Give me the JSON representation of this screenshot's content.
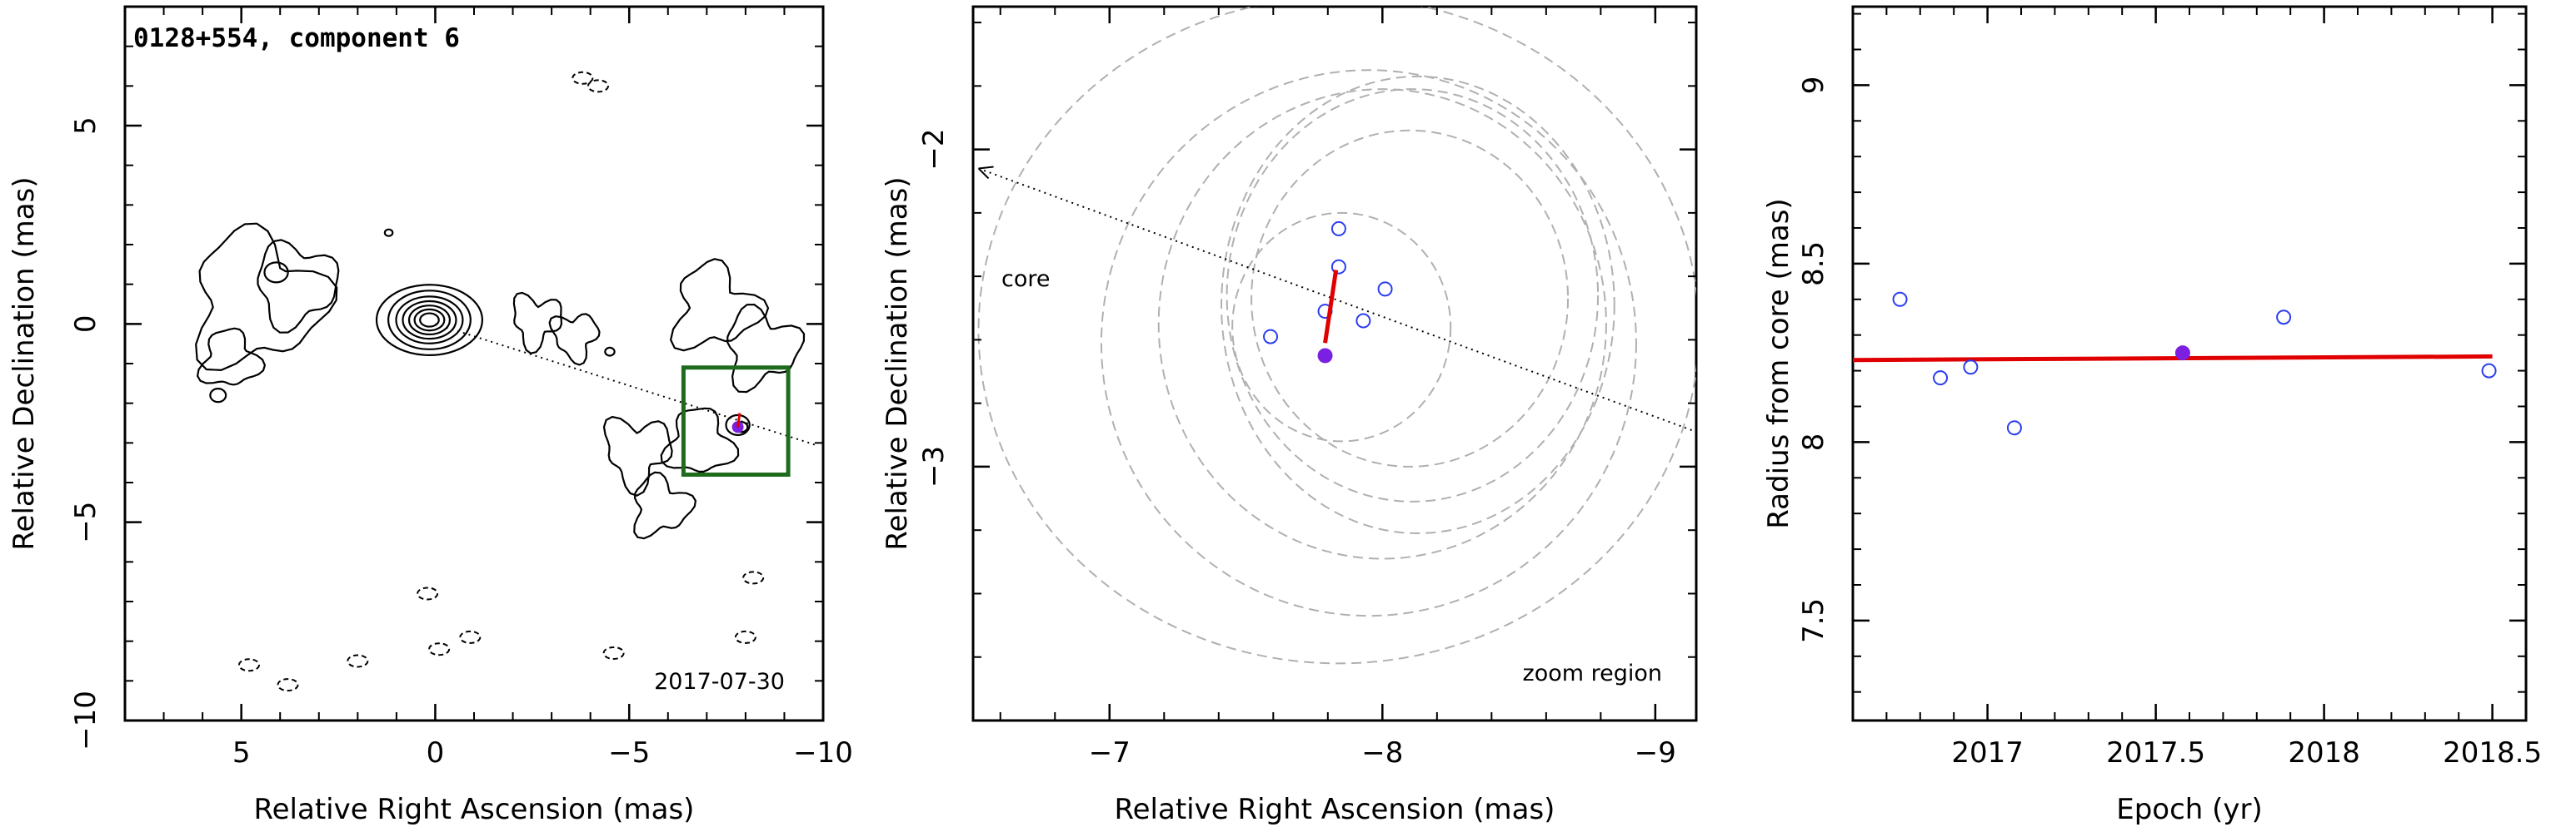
{
  "chart_data": [
    {
      "type": "contour",
      "title": "0128+554, component 6",
      "xlabel": "Relative Right Ascension (mas)",
      "ylabel": "Relative Declination (mas)",
      "xlim": [
        8,
        -10
      ],
      "ylim": [
        -10,
        8
      ],
      "x_ticks": [
        5,
        0,
        -5,
        -10
      ],
      "x_tick_labels": [
        "5",
        "0",
        "−5",
        "−10"
      ],
      "y_ticks": [
        5,
        0,
        -5,
        -10
      ],
      "y_tick_labels": [
        "5",
        "0",
        "−5",
        "−10"
      ],
      "annotation": "2017-07-30",
      "component_position": {
        "x": -7.8,
        "y": -2.6
      },
      "core_direction_line": {
        "from": [
          0.0,
          0.0
        ],
        "to": [
          -9.8,
          -3.05
        ]
      },
      "zoom_box": {
        "xlim": [
          -6.4,
          -9.1
        ],
        "ylim": [
          -1.1,
          -3.8
        ]
      },
      "colors": {
        "contour": "#000000",
        "zoom_box": "#1e6b1e",
        "component": "#7b1fe0",
        "motion": "#e00000"
      }
    },
    {
      "type": "scatter",
      "xlabel": "Relative Right Ascension (mas)",
      "ylabel": "Relative Declination (mas)",
      "xlim": [
        -6.5,
        -9.15
      ],
      "ylim": [
        -3.8,
        -1.55
      ],
      "x_ticks": [
        -7,
        -8,
        -9
      ],
      "x_tick_labels": [
        "−7",
        "−8",
        "−9"
      ],
      "y_ticks": [
        -2,
        -3
      ],
      "y_tick_labels": [
        "−2",
        "−3"
      ],
      "annotations": {
        "core": "core",
        "region": "zoom region"
      },
      "points_open": [
        {
          "x": -7.59,
          "y": -2.59
        },
        {
          "x": -7.79,
          "y": -2.51
        },
        {
          "x": -7.84,
          "y": -2.25
        },
        {
          "x": -7.84,
          "y": -2.37
        },
        {
          "x": -7.93,
          "y": -2.54
        },
        {
          "x": -8.01,
          "y": -2.44
        }
      ],
      "point_filled": {
        "x": -7.79,
        "y": -2.65
      },
      "motion_vector": {
        "from": [
          -7.79,
          -2.61
        ],
        "to": [
          -7.83,
          -2.38
        ]
      },
      "core_line": {
        "from": [
          -6.52,
          -2.06
        ],
        "to": [
          -9.15,
          -2.89
        ]
      },
      "ellipses": [
        {
          "cx": -7.85,
          "cy": -2.56,
          "rx": 0.4,
          "ry": 0.36
        },
        {
          "cx": -8.1,
          "cy": -2.47,
          "rx": 0.58,
          "ry": 0.53
        },
        {
          "cx": -8.11,
          "cy": -2.46,
          "rx": 0.68,
          "ry": 0.65
        },
        {
          "cx": -8.13,
          "cy": -2.49,
          "rx": 0.72,
          "ry": 0.72
        },
        {
          "cx": -8.0,
          "cy": -2.55,
          "rx": 0.82,
          "ry": 0.74
        },
        {
          "cx": -7.95,
          "cy": -2.61,
          "rx": 0.98,
          "ry": 0.86
        },
        {
          "cx": -7.84,
          "cy": -2.57,
          "rx": 1.32,
          "ry": 1.05
        }
      ],
      "colors": {
        "open": "#2b3df0",
        "filled": "#7b1fe0",
        "motion": "#e00000",
        "ellipse": "#b0b0b0"
      }
    },
    {
      "type": "scatter",
      "xlabel": "Epoch (yr)",
      "ylabel": "Radius from core (mas)",
      "xlim": [
        2016.6,
        2018.6
      ],
      "ylim": [
        7.22,
        9.22
      ],
      "x_ticks": [
        2017,
        2017.5,
        2018,
        2018.5
      ],
      "x_tick_labels": [
        "2017",
        "2017.5",
        "2018",
        "2018.5"
      ],
      "y_ticks": [
        7.5,
        8,
        8.5,
        9
      ],
      "y_tick_labels": [
        "7.5",
        "8",
        "8.5",
        "9"
      ],
      "points_open": [
        {
          "x": 2016.74,
          "y": 8.4
        },
        {
          "x": 2016.86,
          "y": 8.18
        },
        {
          "x": 2016.95,
          "y": 8.21
        },
        {
          "x": 2017.08,
          "y": 8.04
        },
        {
          "x": 2017.88,
          "y": 8.35
        },
        {
          "x": 2018.49,
          "y": 8.2
        }
      ],
      "point_filled": {
        "x": 2017.58,
        "y": 8.25
      },
      "fit_line": {
        "x": [
          2016.6,
          2018.5
        ],
        "y": [
          8.23,
          8.24
        ]
      },
      "colors": {
        "open": "#2b3df0",
        "filled": "#7b1fe0",
        "fit": "#e00000"
      }
    }
  ]
}
